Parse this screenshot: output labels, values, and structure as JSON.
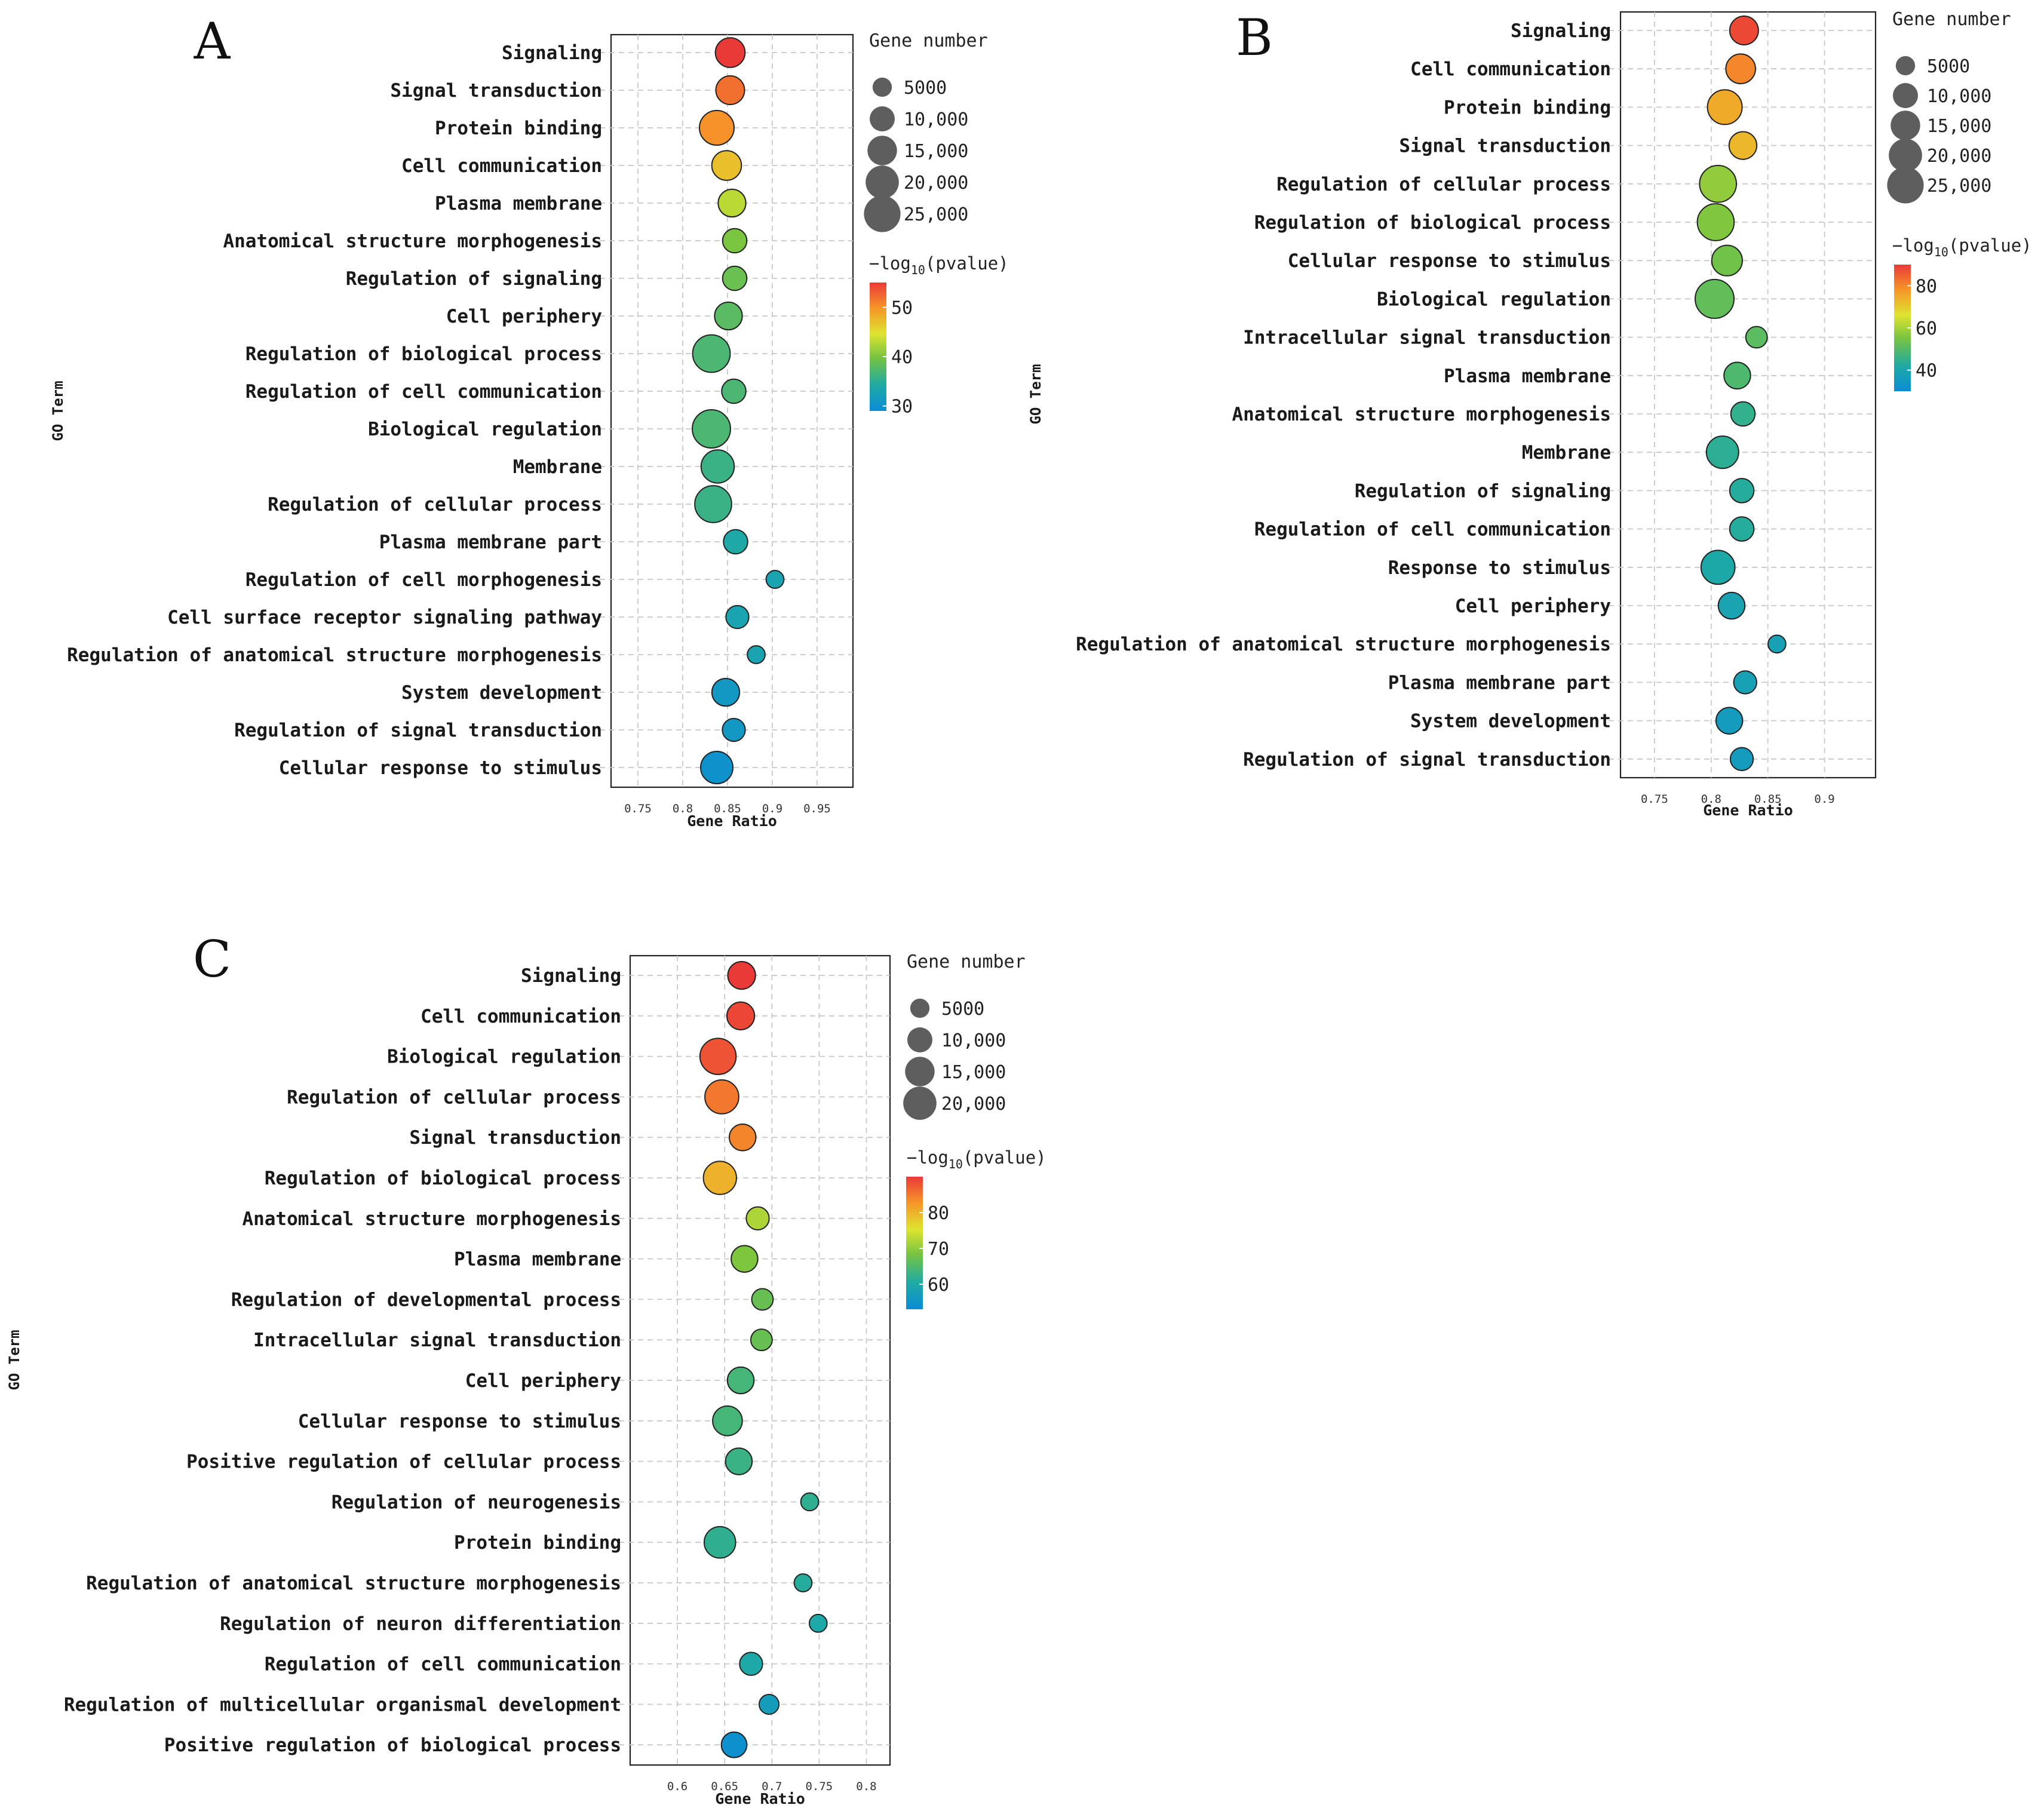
{
  "chart_data": [
    {
      "type": "scatter",
      "panel": "A",
      "ylabel": "GO Term",
      "xlabel": "Gene Ratio",
      "xlim": [
        0.72,
        0.99
      ],
      "xticks": [
        "0.75",
        "0.8",
        "0.85",
        "0.9",
        "0.95"
      ],
      "size_legend_title": "Gene number",
      "size_legend_labels": [
        "5000",
        "10,000",
        "15,000",
        "20,000",
        "25,000"
      ],
      "size_legend_values": [
        5000,
        10000,
        15000,
        20000,
        25000
      ],
      "color_legend_title": "−log10(pvalue)",
      "color_legend_prefix": "−log",
      "color_legend_sub": "10",
      "color_legend_suffix": "(pvalue)",
      "color_range": [
        29,
        55
      ],
      "color_ticks": [
        30,
        40,
        50
      ],
      "color_tick_labels": [
        "30",
        "40",
        "50"
      ],
      "terms": [
        "Signaling",
        "Signal transduction",
        "Protein binding",
        "Cell communication",
        "Plasma membrane",
        "Anatomical structure morphogenesis",
        "Regulation of signaling",
        "Cell periphery",
        "Regulation of biological process",
        "Regulation of cell communication",
        "Biological regulation",
        "Membrane",
        "Regulation of cellular process",
        "Plasma membrane part",
        "Regulation of cell morphogenesis",
        "Cell surface receptor signaling pathway",
        "Regulation of anatomical structure morphogenesis",
        "System development",
        "Regulation of signal transduction",
        "Cellular response to stimulus"
      ],
      "gene_ratio": [
        0.853,
        0.853,
        0.838,
        0.849,
        0.855,
        0.858,
        0.858,
        0.851,
        0.832,
        0.857,
        0.832,
        0.839,
        0.834,
        0.859,
        0.903,
        0.861,
        0.882,
        0.848,
        0.857,
        0.838
      ],
      "gene_number": [
        11000,
        10000,
        17000,
        11000,
        9000,
        6000,
        6000,
        9000,
        21000,
        6000,
        22000,
        15000,
        20000,
        6000,
        2000,
        5000,
        2000,
        9000,
        5000,
        14000
      ],
      "neg_log10_p": [
        55,
        52,
        50,
        47,
        43,
        40,
        39,
        38,
        37,
        37,
        37,
        36,
        36,
        34,
        33,
        33,
        33,
        31,
        31,
        30
      ]
    },
    {
      "type": "scatter",
      "panel": "B",
      "ylabel": "GO Term",
      "xlabel": "Gene Ratio",
      "xlim": [
        0.72,
        0.945
      ],
      "xticks": [
        "0.75",
        "0.8",
        "0.85",
        "0.9"
      ],
      "size_legend_title": "Gene number",
      "size_legend_labels": [
        "5000",
        "10,000",
        "15,000",
        "20,000",
        "25,000"
      ],
      "size_legend_values": [
        5000,
        10000,
        15000,
        20000,
        25000
      ],
      "color_legend_title": "−log10(pvalue)",
      "color_legend_prefix": "−log",
      "color_legend_sub": "10",
      "color_legend_suffix": "(pvalue)",
      "color_range": [
        30,
        90
      ],
      "color_ticks": [
        40,
        60,
        80
      ],
      "color_tick_labels": [
        "40",
        "60",
        "80"
      ],
      "terms": [
        "Signaling",
        "Cell communication",
        "Protein binding",
        "Signal transduction",
        "Regulation of cellular process",
        "Regulation of biological process",
        "Cellular response to stimulus",
        "Biological regulation",
        "Intracellular signal transduction",
        "Plasma membrane",
        "Anatomical structure morphogenesis",
        "Membrane",
        "Regulation of signaling",
        "Regulation of cell communication",
        "Response to stimulus",
        "Cell periphery",
        "Regulation of anatomical structure morphogenesis",
        "Plasma membrane part",
        "System development",
        "Regulation of signal transduction"
      ],
      "gene_ratio": [
        0.829,
        0.826,
        0.812,
        0.828,
        0.806,
        0.804,
        0.814,
        0.803,
        0.84,
        0.823,
        0.828,
        0.81,
        0.827,
        0.827,
        0.806,
        0.818,
        0.858,
        0.83,
        0.816,
        0.827
      ],
      "gene_number": [
        10000,
        11000,
        17000,
        9000,
        20000,
        20000,
        12000,
        23000,
        4000,
        8000,
        6000,
        14000,
        6000,
        6000,
        16000,
        8000,
        2000,
        5000,
        8000,
        5000
      ],
      "neg_log10_p": [
        88,
        80,
        75,
        73,
        58,
        56,
        54,
        52,
        51,
        49,
        45,
        44,
        43,
        43,
        41,
        39,
        38,
        38,
        36,
        36
      ]
    },
    {
      "type": "scatter",
      "panel": "C",
      "ylabel": "GO Term",
      "xlabel": "Gene Ratio",
      "xlim": [
        0.55,
        0.825
      ],
      "xticks": [
        "0.6",
        "0.65",
        "0.7",
        "0.75",
        "0.8"
      ],
      "size_legend_title": "Gene number",
      "size_legend_labels": [
        "5000",
        "10,000",
        "15,000",
        "20,000"
      ],
      "size_legend_values": [
        5000,
        10000,
        15000,
        20000
      ],
      "color_legend_title": "−log10(pvalue)",
      "color_legend_prefix": "−log",
      "color_legend_sub": "10",
      "color_legend_suffix": "(pvalue)",
      "color_range": [
        53,
        90
      ],
      "color_ticks": [
        60,
        70,
        80
      ],
      "color_tick_labels": [
        "60",
        "70",
        "80"
      ],
      "terms": [
        "Signaling",
        "Cell communication",
        "Biological regulation",
        "Regulation of cellular process",
        "Signal transduction",
        "Regulation of biological process",
        "Anatomical structure morphogenesis",
        "Plasma membrane",
        "Regulation of developmental process",
        "Intracellular signal transduction",
        "Cell periphery",
        "Cellular response to stimulus",
        "Positive regulation of cellular process",
        "Regulation of neurogenesis",
        "Protein binding",
        "Regulation of anatomical structure morphogenesis",
        "Regulation of neuron differentiation",
        "Regulation of cell communication",
        "Regulation of multicellular organismal development",
        "Positive regulation of biological process"
      ],
      "gene_ratio": [
        0.668,
        0.667,
        0.643,
        0.647,
        0.669,
        0.645,
        0.685,
        0.671,
        0.69,
        0.689,
        0.667,
        0.653,
        0.665,
        0.74,
        0.645,
        0.733,
        0.749,
        0.678,
        0.697,
        0.66
      ],
      "gene_number": [
        9000,
        9000,
        19000,
        16000,
        8000,
        15000,
        5000,
        8000,
        4000,
        4000,
        8000,
        11000,
        8000,
        2000,
        13000,
        2000,
        2000,
        5000,
        3000,
        7000
      ],
      "neg_log10_p": [
        90,
        89,
        88,
        85,
        84,
        80,
        72,
        69,
        67,
        67,
        64,
        64,
        63,
        62,
        62,
        61,
        60,
        60,
        57,
        54
      ]
    }
  ]
}
